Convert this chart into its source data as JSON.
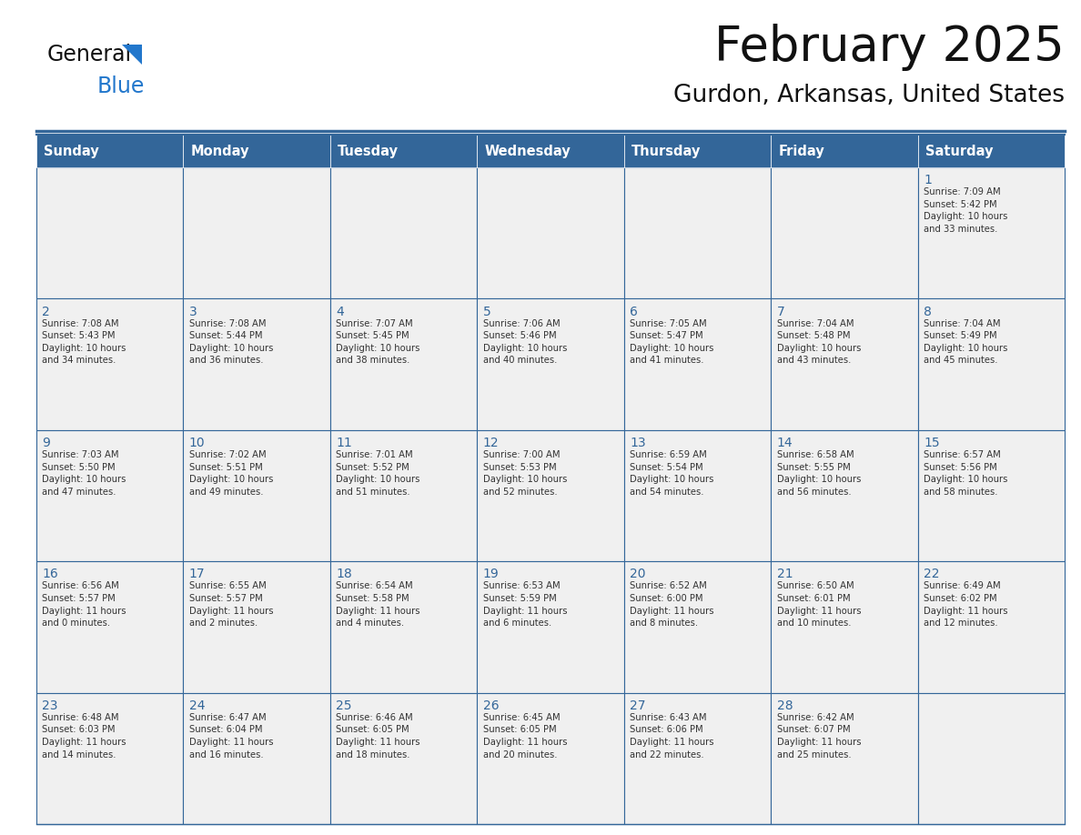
{
  "title": "February 2025",
  "subtitle": "Gurdon, Arkansas, United States",
  "header_bg": "#336699",
  "header_text_color": "#FFFFFF",
  "cell_bg": "#F0F0F0",
  "border_color": "#336699",
  "border_color_light": "#5588BB",
  "day_names": [
    "Sunday",
    "Monday",
    "Tuesday",
    "Wednesday",
    "Thursday",
    "Friday",
    "Saturday"
  ],
  "title_color": "#111111",
  "subtitle_color": "#111111",
  "day_num_color": "#336699",
  "cell_text_color": "#333333",
  "logo_text_color": "#111111",
  "logo_blue_color": "#2277CC",
  "logo_triangle_color": "#2277CC",
  "weeks": [
    [
      {
        "day": "",
        "text": ""
      },
      {
        "day": "",
        "text": ""
      },
      {
        "day": "",
        "text": ""
      },
      {
        "day": "",
        "text": ""
      },
      {
        "day": "",
        "text": ""
      },
      {
        "day": "",
        "text": ""
      },
      {
        "day": "1",
        "text": "Sunrise: 7:09 AM\nSunset: 5:42 PM\nDaylight: 10 hours\nand 33 minutes."
      }
    ],
    [
      {
        "day": "2",
        "text": "Sunrise: 7:08 AM\nSunset: 5:43 PM\nDaylight: 10 hours\nand 34 minutes."
      },
      {
        "day": "3",
        "text": "Sunrise: 7:08 AM\nSunset: 5:44 PM\nDaylight: 10 hours\nand 36 minutes."
      },
      {
        "day": "4",
        "text": "Sunrise: 7:07 AM\nSunset: 5:45 PM\nDaylight: 10 hours\nand 38 minutes."
      },
      {
        "day": "5",
        "text": "Sunrise: 7:06 AM\nSunset: 5:46 PM\nDaylight: 10 hours\nand 40 minutes."
      },
      {
        "day": "6",
        "text": "Sunrise: 7:05 AM\nSunset: 5:47 PM\nDaylight: 10 hours\nand 41 minutes."
      },
      {
        "day": "7",
        "text": "Sunrise: 7:04 AM\nSunset: 5:48 PM\nDaylight: 10 hours\nand 43 minutes."
      },
      {
        "day": "8",
        "text": "Sunrise: 7:04 AM\nSunset: 5:49 PM\nDaylight: 10 hours\nand 45 minutes."
      }
    ],
    [
      {
        "day": "9",
        "text": "Sunrise: 7:03 AM\nSunset: 5:50 PM\nDaylight: 10 hours\nand 47 minutes."
      },
      {
        "day": "10",
        "text": "Sunrise: 7:02 AM\nSunset: 5:51 PM\nDaylight: 10 hours\nand 49 minutes."
      },
      {
        "day": "11",
        "text": "Sunrise: 7:01 AM\nSunset: 5:52 PM\nDaylight: 10 hours\nand 51 minutes."
      },
      {
        "day": "12",
        "text": "Sunrise: 7:00 AM\nSunset: 5:53 PM\nDaylight: 10 hours\nand 52 minutes."
      },
      {
        "day": "13",
        "text": "Sunrise: 6:59 AM\nSunset: 5:54 PM\nDaylight: 10 hours\nand 54 minutes."
      },
      {
        "day": "14",
        "text": "Sunrise: 6:58 AM\nSunset: 5:55 PM\nDaylight: 10 hours\nand 56 minutes."
      },
      {
        "day": "15",
        "text": "Sunrise: 6:57 AM\nSunset: 5:56 PM\nDaylight: 10 hours\nand 58 minutes."
      }
    ],
    [
      {
        "day": "16",
        "text": "Sunrise: 6:56 AM\nSunset: 5:57 PM\nDaylight: 11 hours\nand 0 minutes."
      },
      {
        "day": "17",
        "text": "Sunrise: 6:55 AM\nSunset: 5:57 PM\nDaylight: 11 hours\nand 2 minutes."
      },
      {
        "day": "18",
        "text": "Sunrise: 6:54 AM\nSunset: 5:58 PM\nDaylight: 11 hours\nand 4 minutes."
      },
      {
        "day": "19",
        "text": "Sunrise: 6:53 AM\nSunset: 5:59 PM\nDaylight: 11 hours\nand 6 minutes."
      },
      {
        "day": "20",
        "text": "Sunrise: 6:52 AM\nSunset: 6:00 PM\nDaylight: 11 hours\nand 8 minutes."
      },
      {
        "day": "21",
        "text": "Sunrise: 6:50 AM\nSunset: 6:01 PM\nDaylight: 11 hours\nand 10 minutes."
      },
      {
        "day": "22",
        "text": "Sunrise: 6:49 AM\nSunset: 6:02 PM\nDaylight: 11 hours\nand 12 minutes."
      }
    ],
    [
      {
        "day": "23",
        "text": "Sunrise: 6:48 AM\nSunset: 6:03 PM\nDaylight: 11 hours\nand 14 minutes."
      },
      {
        "day": "24",
        "text": "Sunrise: 6:47 AM\nSunset: 6:04 PM\nDaylight: 11 hours\nand 16 minutes."
      },
      {
        "day": "25",
        "text": "Sunrise: 6:46 AM\nSunset: 6:05 PM\nDaylight: 11 hours\nand 18 minutes."
      },
      {
        "day": "26",
        "text": "Sunrise: 6:45 AM\nSunset: 6:05 PM\nDaylight: 11 hours\nand 20 minutes."
      },
      {
        "day": "27",
        "text": "Sunrise: 6:43 AM\nSunset: 6:06 PM\nDaylight: 11 hours\nand 22 minutes."
      },
      {
        "day": "28",
        "text": "Sunrise: 6:42 AM\nSunset: 6:07 PM\nDaylight: 11 hours\nand 25 minutes."
      },
      {
        "day": "",
        "text": ""
      }
    ]
  ]
}
